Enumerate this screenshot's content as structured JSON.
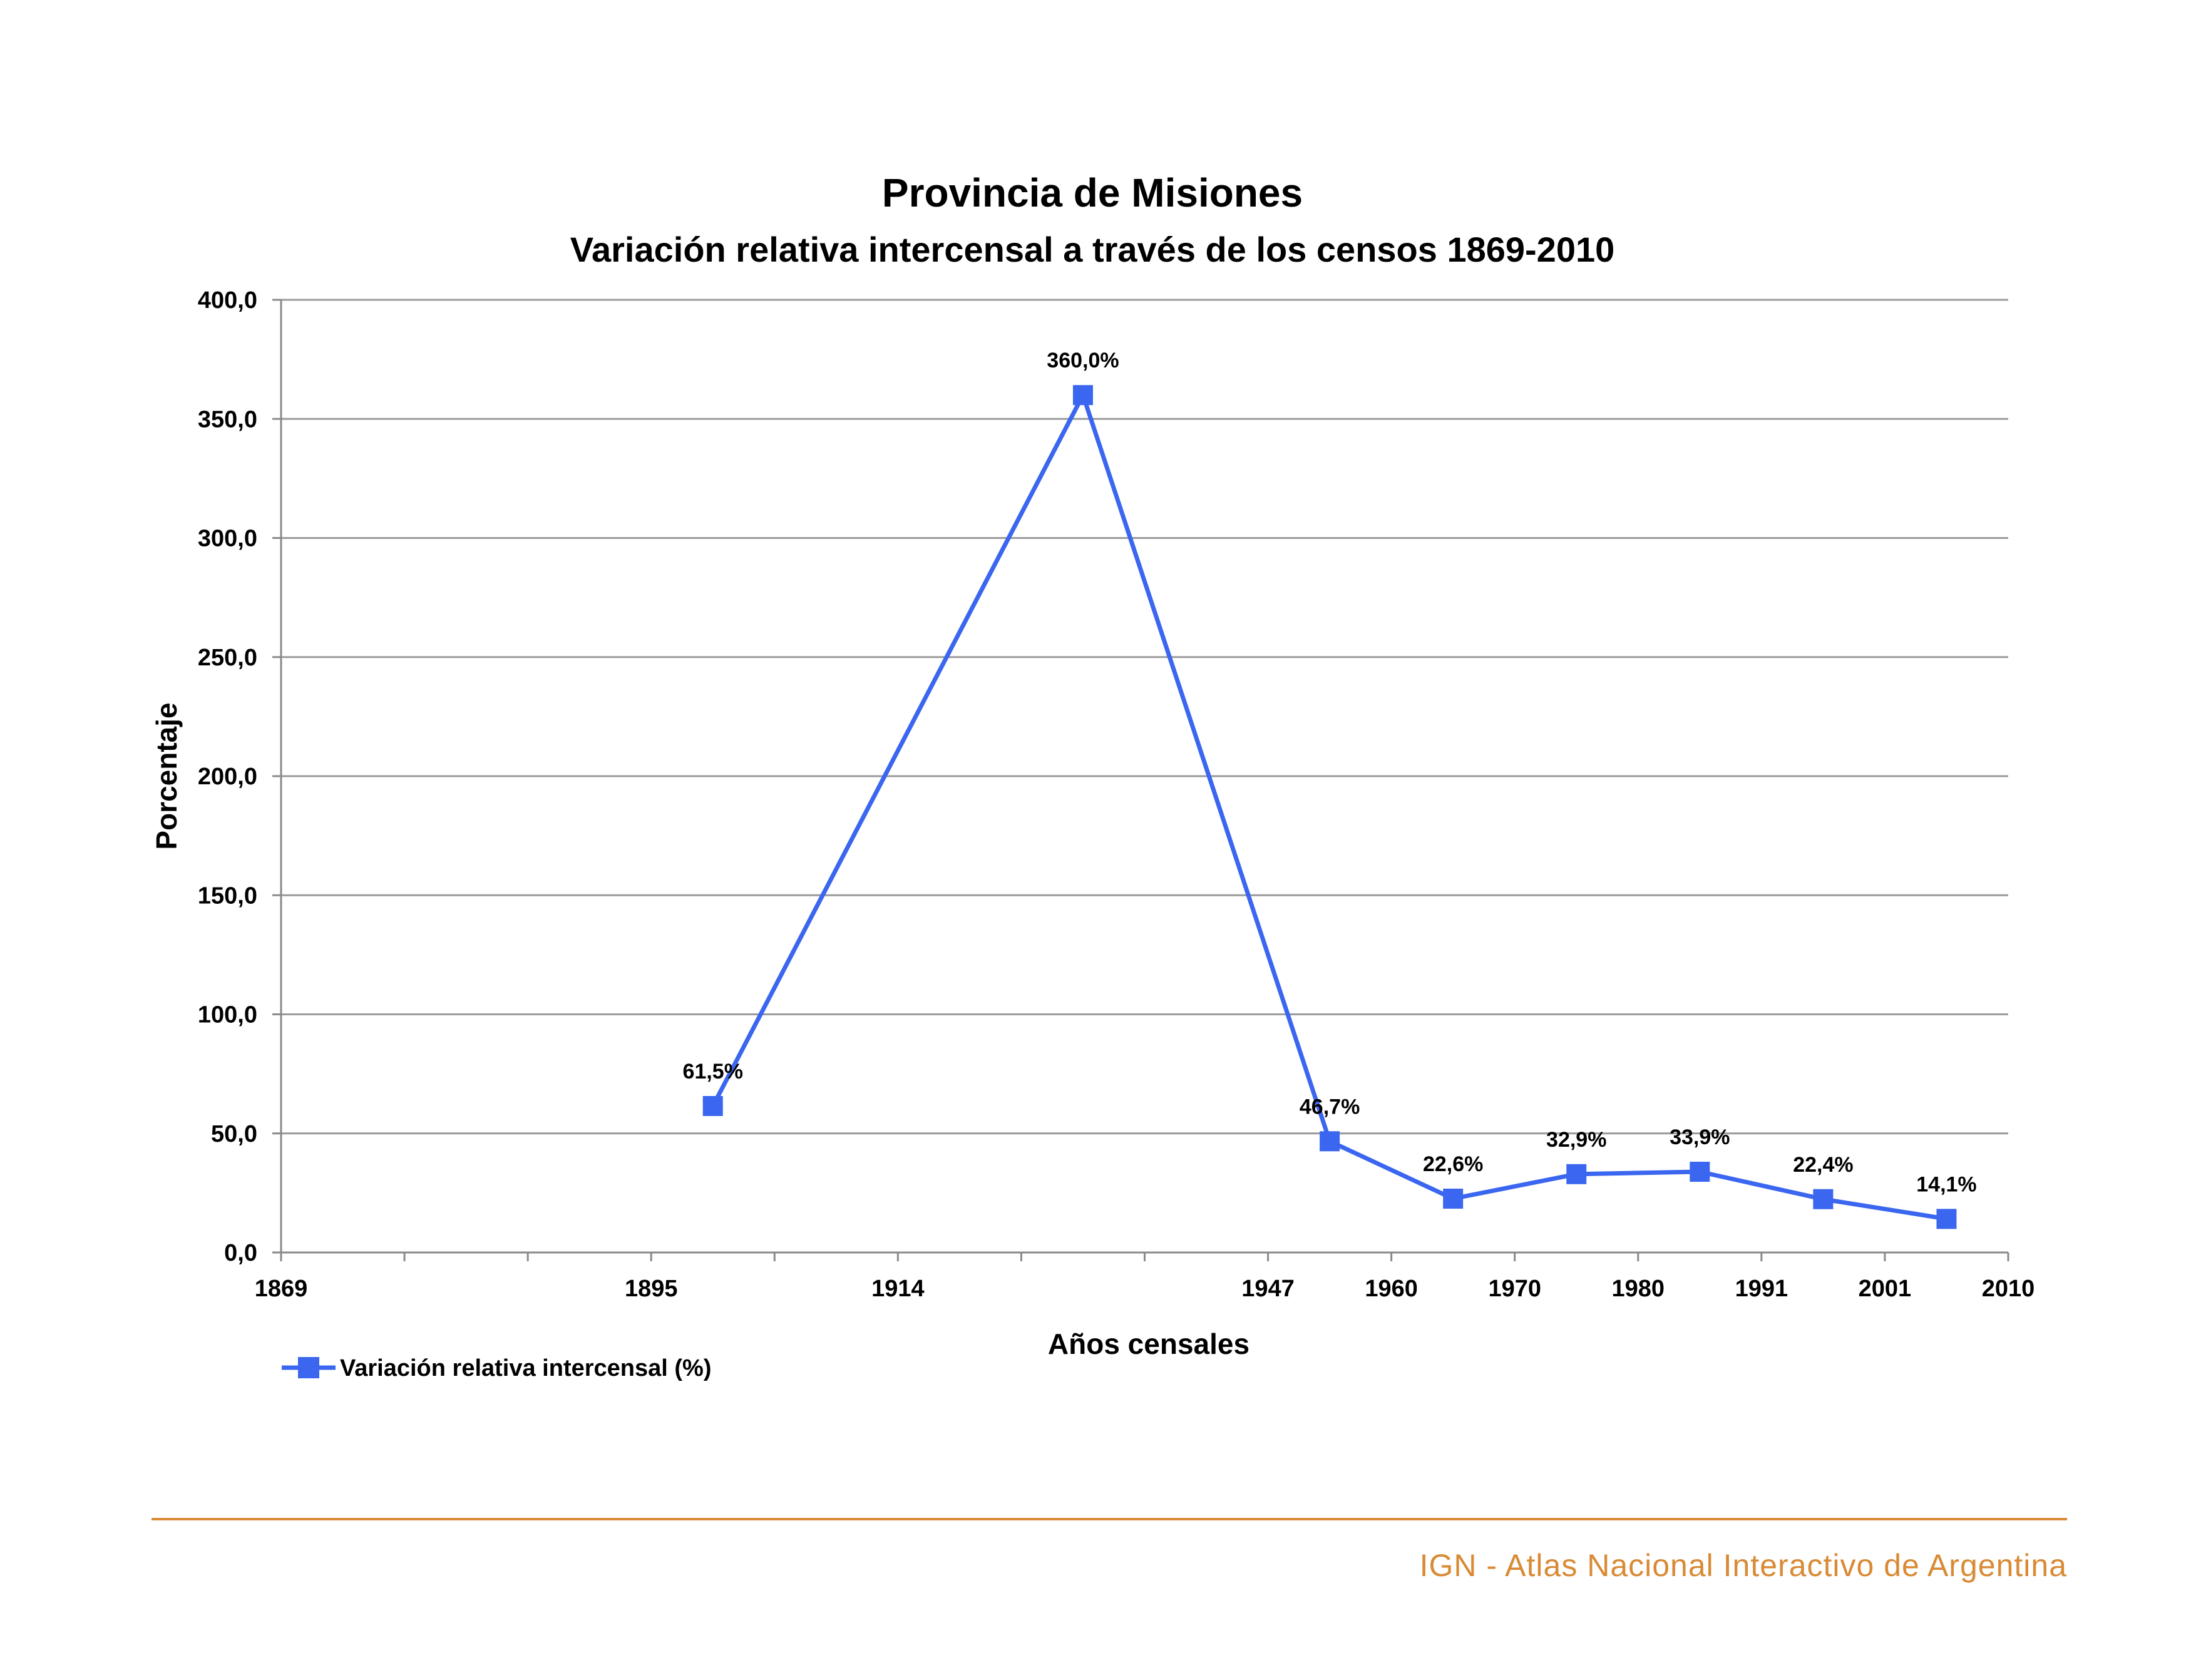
{
  "chart_data": {
    "type": "line",
    "title": "Provincia de Misiones",
    "subtitle": "Variación relativa intercensal a través de los censos 1869-2010",
    "xlabel": "Años censales",
    "ylabel": "Porcentaje",
    "ylim": [
      0,
      400
    ],
    "y_ticks": [
      "0,0",
      "50,0",
      "100,0",
      "150,0",
      "200,0",
      "250,0",
      "300,0",
      "350,0",
      "400,0"
    ],
    "x_tick_labels": [
      "1869",
      "",
      "",
      "1895",
      "",
      "1914",
      "",
      "",
      "1947",
      "1960",
      "1970",
      "1980",
      "1991",
      "2001",
      "2010"
    ],
    "grid": true,
    "legend_position": "bottom-left",
    "line_color": "#3a66f0",
    "series": [
      {
        "name": "Variación relativa intercensal (%)",
        "points": [
          {
            "slot": 3.5,
            "value": 61.5,
            "label": "61,5%"
          },
          {
            "slot": 6.5,
            "value": 360.0,
            "label": "360,0%"
          },
          {
            "slot": 8.5,
            "value": 46.7,
            "label": "46,7%"
          },
          {
            "slot": 9.5,
            "value": 22.6,
            "label": "22,6%"
          },
          {
            "slot": 10.5,
            "value": 32.9,
            "label": "32,9%"
          },
          {
            "slot": 11.5,
            "value": 33.9,
            "label": "33,9%"
          },
          {
            "slot": 12.5,
            "value": 22.4,
            "label": "22,4%"
          },
          {
            "slot": 13.5,
            "value": 14.1,
            "label": "14,1%"
          }
        ]
      }
    ]
  },
  "footer": {
    "text": "IGN - Atlas Nacional Interactivo de Argentina",
    "color": "#d98a35"
  }
}
